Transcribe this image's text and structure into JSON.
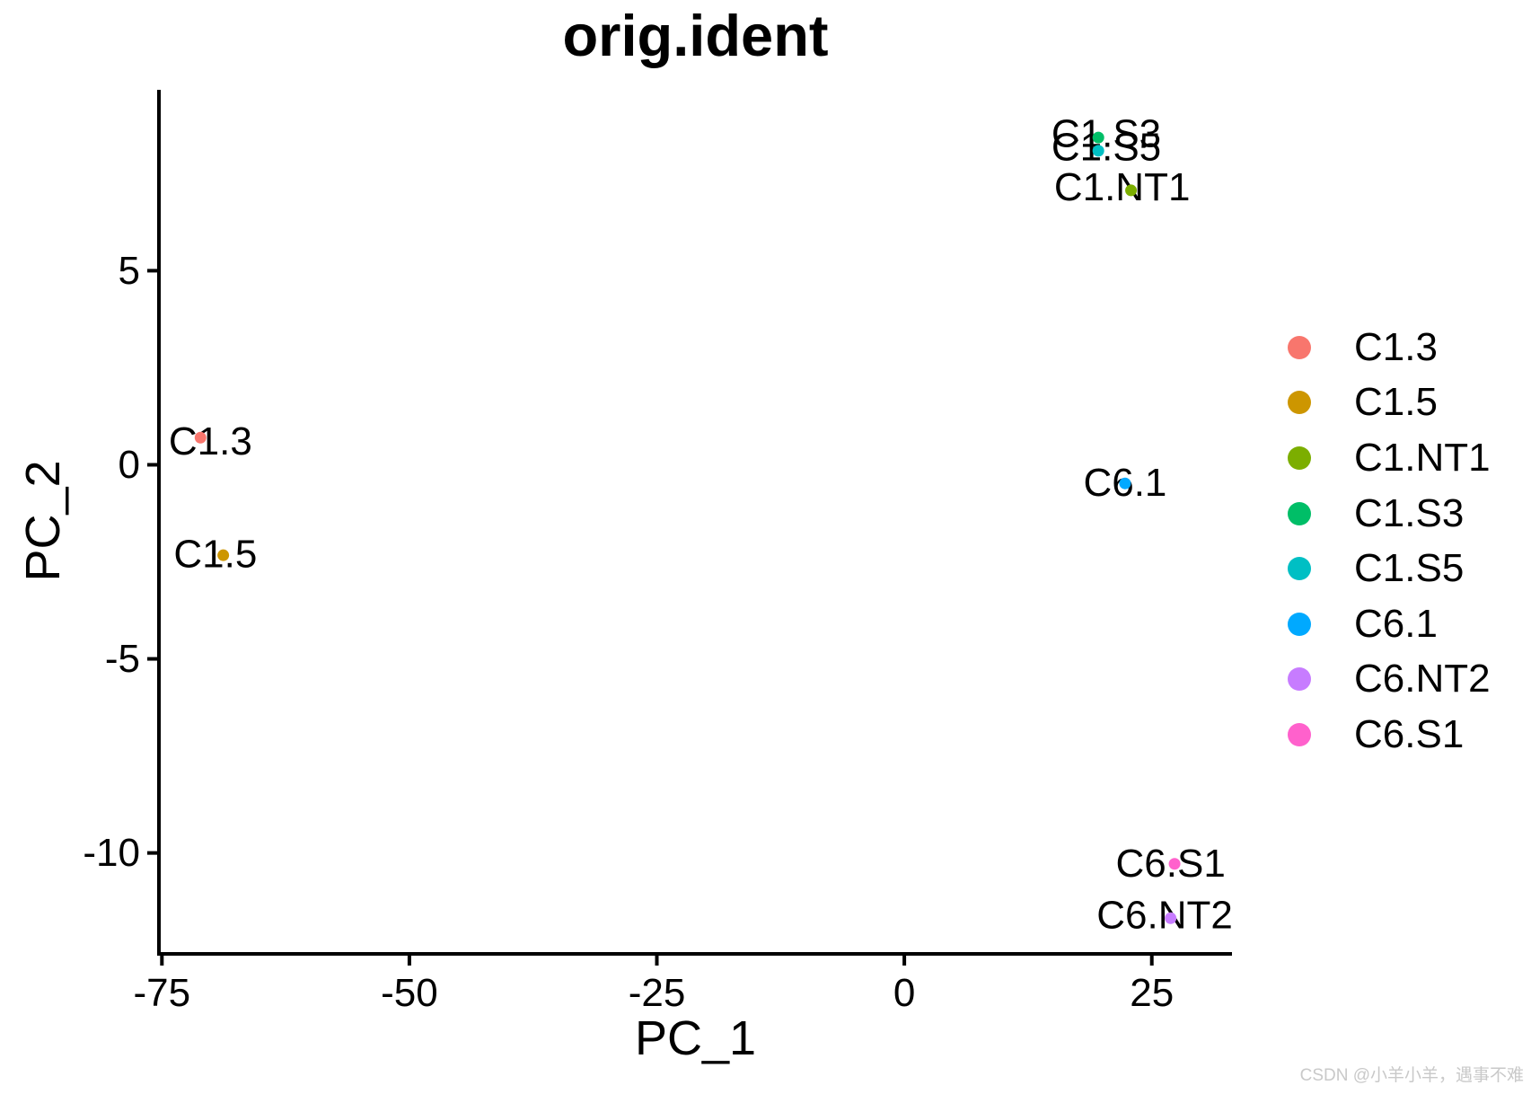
{
  "watermark": "CSDN @小羊小羊，遇事不难",
  "chart_data": {
    "type": "scatter",
    "title": "orig.ident",
    "xlabel": "PC_1",
    "ylabel": "PC_2",
    "xlim": [
      -75.3,
      33.1
    ],
    "ylim": [
      -12.6,
      9.66
    ],
    "x_ticks": [
      -75,
      -50,
      -25,
      0,
      25
    ],
    "y_ticks": [
      5,
      0,
      -5,
      -10
    ],
    "grid": false,
    "legend_position": "right",
    "axis_color": "#000000",
    "groups": [
      {
        "name": "C1.3",
        "color": "#F8766D",
        "x": -71.1,
        "y": 0.7,
        "label_x": -70.1,
        "label_y": 0.6
      },
      {
        "name": "C1.5",
        "color": "#CD9600",
        "x": -68.8,
        "y": -2.33,
        "label_x": -69.6,
        "label_y": -2.3
      },
      {
        "name": "C1.NT1",
        "color": "#7CAE00",
        "x": 22.9,
        "y": 7.07,
        "label_x": 22.0,
        "label_y": 7.15
      },
      {
        "name": "C1.S3",
        "color": "#00BE67",
        "x": 19.6,
        "y": 8.43,
        "label_x": 20.4,
        "label_y": 8.53
      },
      {
        "name": "C1.S5",
        "color": "#00BFC4",
        "x": 19.6,
        "y": 8.09,
        "label_x": 20.4,
        "label_y": 8.18
      },
      {
        "name": "C6.1",
        "color": "#00A9FF",
        "x": 22.3,
        "y": -0.48,
        "label_x": 22.3,
        "label_y": -0.46
      },
      {
        "name": "C6.NT2",
        "color": "#C77CFF",
        "x": 26.9,
        "y": -11.68,
        "label_x": 26.3,
        "label_y": -11.6
      },
      {
        "name": "C6.S1",
        "color": "#FF61CC",
        "x": 27.3,
        "y": -10.28,
        "label_x": 26.9,
        "label_y": -10.28
      }
    ]
  }
}
